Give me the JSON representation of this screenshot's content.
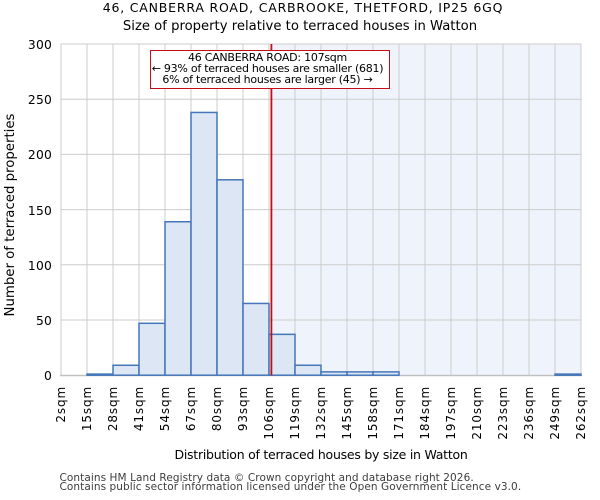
{
  "title": "46, CANBERRA ROAD, CARBROOKE, THETFORD, IP25 6GQ",
  "subtitle": "Size of property relative to terraced houses in Watton",
  "chart_data": {
    "type": "bar",
    "title": "46, CANBERRA ROAD, CARBROOKE, THETFORD, IP25 6GQ",
    "subtitle": "Size of property relative to terraced houses in Watton",
    "xlabel": "Distribution of terraced houses by size in Watton",
    "ylabel": "Number of terraced properties",
    "categories": [
      "2sqm",
      "15sqm",
      "28sqm",
      "41sqm",
      "54sqm",
      "67sqm",
      "80sqm",
      "93sqm",
      "106sqm",
      "119sqm",
      "132sqm",
      "145sqm",
      "158sqm",
      "171sqm",
      "184sqm",
      "197sqm",
      "210sqm",
      "223sqm",
      "236sqm",
      "249sqm",
      "262sqm"
    ],
    "bin_edges_sqm": [
      2,
      15,
      28,
      41,
      54,
      67,
      80,
      93,
      106,
      119,
      132,
      145,
      158,
      171,
      184,
      197,
      210,
      223,
      236,
      249,
      262
    ],
    "values": [
      0,
      1,
      9,
      47,
      139,
      238,
      177,
      65,
      37,
      9,
      3,
      3,
      3,
      0,
      0,
      0,
      0,
      0,
      0,
      1
    ],
    "ylim": [
      0,
      300
    ],
    "yticks": [
      0,
      50,
      100,
      150,
      200,
      250,
      300
    ],
    "grid": true,
    "legend": false,
    "marker_line_sqm": 107,
    "colors": {
      "bar_fill": "#dce6f4",
      "bar_edge": "#4576b9",
      "grid": "#cccccc",
      "axis_spine": "#c0c0c0",
      "marker_line": "#c40d16",
      "highlight_region": "#eff3fb",
      "annotation_border": "#c40d16",
      "annotation_bg": "#ffffff",
      "text": "#000000",
      "footer_text": "#3d3d3d"
    }
  },
  "annotation": {
    "line1": "46 CANBERRA ROAD: 107sqm",
    "line2": "← 93% of terraced houses are smaller (681)",
    "line3": "6% of terraced houses are larger (45) →"
  },
  "footer": {
    "line1": "Contains HM Land Registry data © Crown copyright and database right 2026.",
    "line2": "Contains public sector information licensed under the Open Government Licence v3.0."
  }
}
